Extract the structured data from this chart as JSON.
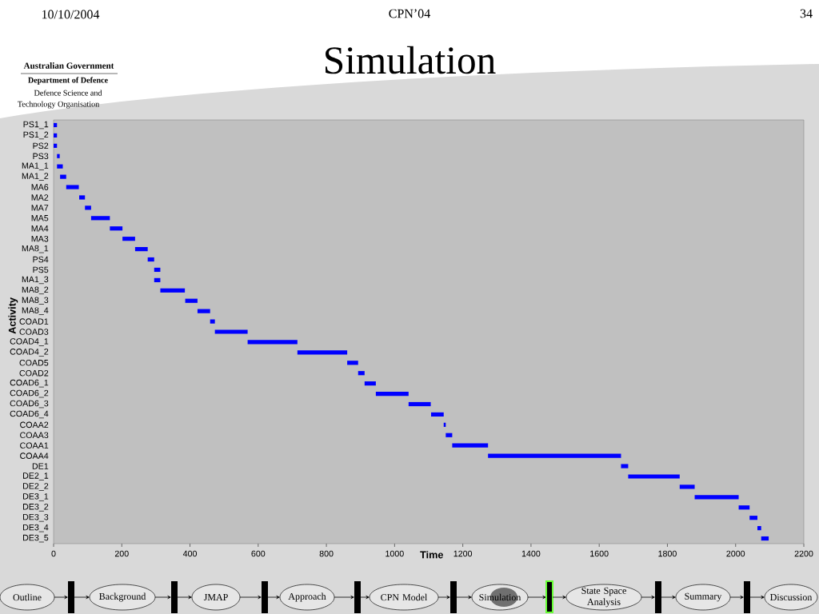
{
  "chart_data": {
    "type": "bar",
    "orientation": "horizontal",
    "title": "Simulation",
    "xlabel": "Time",
    "ylabel": "Activity",
    "categories": [
      "PS1_1",
      "PS1_2",
      "PS2",
      "PS3",
      "MA1_1",
      "MA1_2",
      "MA6",
      "MA2",
      "MA7",
      "MA5",
      "MA4",
      "MA3",
      "MA8_1",
      "PS4",
      "PS5",
      "MA1_3",
      "MA8_2",
      "MA8_3",
      "MA8_4",
      "COAD1",
      "COAD3",
      "COAD4_1",
      "COAD4_2",
      "COAD5",
      "COAD2",
      "COAD6_1",
      "COAD6_2",
      "COAD6_3",
      "COAD6_4",
      "COAA2",
      "COAA3",
      "COAA1",
      "COAA4",
      "DE1",
      "DE2_1",
      "DE2_2",
      "DE3_1",
      "DE3_2",
      "DE3_3",
      "DE3_4",
      "DE3_5"
    ],
    "base": [
      0,
      0,
      0,
      10,
      10,
      19,
      37,
      75,
      92,
      110,
      165,
      202,
      239,
      276,
      295,
      295,
      313,
      386,
      422,
      459,
      473,
      569,
      715,
      861,
      893,
      912,
      945,
      1041,
      1107,
      1144,
      1150,
      1169,
      1274,
      1664,
      1685,
      1836,
      1880,
      2009,
      2041,
      2064,
      2075
    ],
    "values": [
      10,
      10,
      10,
      8,
      17,
      18,
      37,
      17,
      18,
      55,
      37,
      37,
      37,
      19,
      18,
      18,
      72,
      36,
      37,
      14,
      96,
      146,
      146,
      32,
      19,
      33,
      96,
      65,
      37,
      6,
      19,
      105,
      390,
      21,
      151,
      44,
      129,
      32,
      23,
      11,
      22
    ],
    "color": "#0000ff",
    "xlim": [
      0,
      2200
    ],
    "xticks": [
      0,
      200,
      400,
      600,
      800,
      1000,
      1200,
      1400,
      1600,
      1800,
      2000,
      2200
    ],
    "annotations": [
      "10/10/2004",
      "CPN’04",
      "34",
      "Australian Government",
      "Department of Defence",
      "Defence Science and",
      "Technology Organisation",
      "Outline",
      "Background",
      "JMAP",
      "Approach",
      "CPN Model",
      "Simulation",
      "State Space Analysis",
      "Summary",
      "Discussion"
    ]
  }
}
